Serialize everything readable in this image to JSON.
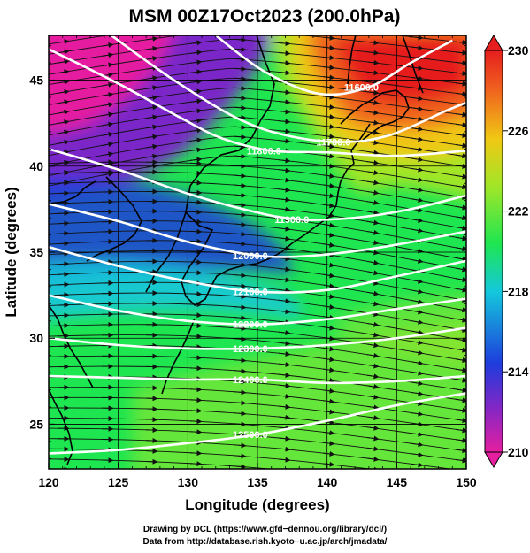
{
  "chart_data": {
    "type": "heatmap",
    "title": "MSM 00Z17Oct2023 (200.0hPa)",
    "xlabel": "Longitude (degrees)",
    "ylabel": "Latitude  (degrees)",
    "xlim": [
      120,
      150
    ],
    "ylim": [
      22.4,
      47.6
    ],
    "xticks": [
      "120",
      "125",
      "130",
      "135",
      "140",
      "145",
      "150"
    ],
    "yticks": [
      "25",
      "30",
      "35",
      "40",
      "45"
    ],
    "colorbar": {
      "range": [
        210,
        230
      ],
      "ticks": [
        "210",
        "214",
        "218",
        "222",
        "226",
        "230"
      ],
      "colors": [
        "#e61ea0",
        "#7a28c8",
        "#1e3cdc",
        "#14c8dc",
        "#1ee650",
        "#a0e628",
        "#f0c814",
        "#f0641e",
        "#e61e1e"
      ]
    },
    "contours": [
      {
        "label": "11600.0",
        "points": [
          [
            132.0,
            47.6
          ],
          [
            135.5,
            45.5
          ],
          [
            139.5,
            44.2
          ],
          [
            143.0,
            44.6
          ],
          [
            146.0,
            46.0
          ],
          [
            149.0,
            47.3
          ]
        ]
      },
      {
        "label": "11700.0",
        "points": [
          [
            124.5,
            47.6
          ],
          [
            129.0,
            45.0
          ],
          [
            133.5,
            42.8
          ],
          [
            137.0,
            41.8
          ],
          [
            141.0,
            41.4
          ],
          [
            144.5,
            41.8
          ],
          [
            148.5,
            43.2
          ],
          [
            150.0,
            43.7
          ]
        ]
      },
      {
        "label": "11800.0",
        "points": [
          [
            120.0,
            46.8
          ],
          [
            125.0,
            44.8
          ],
          [
            129.5,
            42.8
          ],
          [
            132.5,
            41.6
          ],
          [
            136.0,
            40.9
          ],
          [
            140.0,
            40.8
          ],
          [
            145.0,
            40.6
          ],
          [
            150.0,
            40.9
          ]
        ]
      },
      {
        "label": "11900.0",
        "points": [
          [
            120.0,
            41.0
          ],
          [
            125.0,
            39.8
          ],
          [
            130.0,
            38.4
          ],
          [
            134.5,
            37.4
          ],
          [
            138.0,
            36.9
          ],
          [
            142.0,
            37.0
          ],
          [
            146.0,
            37.5
          ],
          [
            150.0,
            38.3
          ]
        ]
      },
      {
        "label": "12000.0",
        "points": [
          [
            120.0,
            37.8
          ],
          [
            125.0,
            36.8
          ],
          [
            130.0,
            35.6
          ],
          [
            135.0,
            34.8
          ],
          [
            139.0,
            34.8
          ],
          [
            144.0,
            35.3
          ],
          [
            150.0,
            36.2
          ]
        ]
      },
      {
        "label": "12100.0",
        "points": [
          [
            120.0,
            35.3
          ],
          [
            125.0,
            34.2
          ],
          [
            130.0,
            33.3
          ],
          [
            135.0,
            32.7
          ],
          [
            140.0,
            32.8
          ],
          [
            145.0,
            33.6
          ],
          [
            150.0,
            34.5
          ]
        ]
      },
      {
        "label": "12200.0",
        "points": [
          [
            120.0,
            32.5
          ],
          [
            125.0,
            31.6
          ],
          [
            130.0,
            31.0
          ],
          [
            135.0,
            30.8
          ],
          [
            140.0,
            31.1
          ],
          [
            145.0,
            31.7
          ],
          [
            150.0,
            32.3
          ]
        ]
      },
      {
        "label": "12300.0",
        "points": [
          [
            120.0,
            30.0
          ],
          [
            125.0,
            29.6
          ],
          [
            130.0,
            29.4
          ],
          [
            135.0,
            29.4
          ],
          [
            140.0,
            29.6
          ],
          [
            145.0,
            30.0
          ],
          [
            150.0,
            30.6
          ]
        ]
      },
      {
        "label": "12400.0",
        "points": [
          [
            120.0,
            27.8
          ],
          [
            125.0,
            27.7
          ],
          [
            130.0,
            27.6
          ],
          [
            135.0,
            27.6
          ],
          [
            140.0,
            27.4
          ],
          [
            145.0,
            27.5
          ],
          [
            150.0,
            27.8
          ]
        ]
      },
      {
        "label": "12500.0",
        "points": [
          [
            120.0,
            23.3
          ],
          [
            125.0,
            23.5
          ],
          [
            130.0,
            23.9
          ],
          [
            135.0,
            24.4
          ],
          [
            140.0,
            25.2
          ],
          [
            145.0,
            26.1
          ],
          [
            150.0,
            26.8
          ]
        ]
      }
    ],
    "grid": true
  },
  "footer": {
    "line1": "Drawing by DCL (https://www.gfd−dennou.org/library/dcl/)",
    "line2": "Data from http://database.rish.kyoto−u.ac.jp/arch/jmadata/"
  }
}
